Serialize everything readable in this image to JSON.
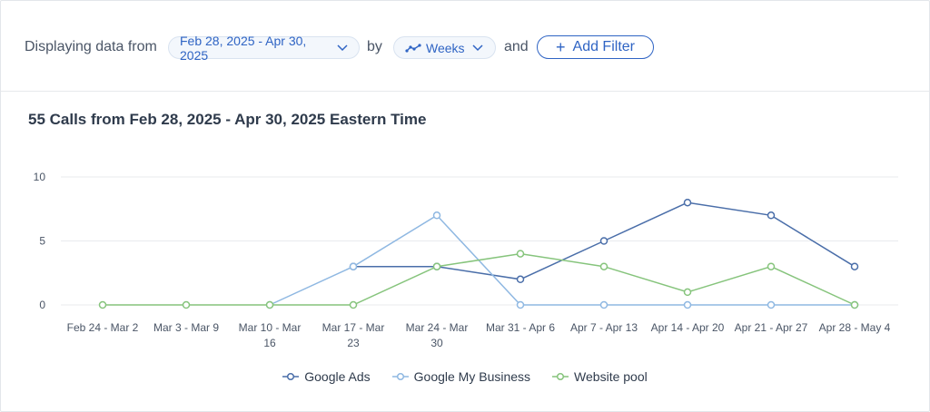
{
  "filters": {
    "prefix": "Displaying data from",
    "date_range": "Feb 28, 2025 - Apr 30, 2025",
    "by": "by",
    "interval": "Weeks",
    "and": "and",
    "add_filter": "Add Filter"
  },
  "colors": {
    "accent": "#2f64c4",
    "google_ads": "#4a6ea9",
    "google_my_business": "#8fb8e2",
    "website_pool": "#86c47c"
  },
  "icons": {
    "date_dropdown": "chevron-down-icon",
    "interval": "line-chart-icon",
    "add_filter": "plus-icon"
  },
  "chart_data": {
    "type": "line",
    "title": "55 Calls from Feb 28, 2025 - Apr 30, 2025 Eastern Time",
    "categories": [
      [
        "Feb 24 - Mar 2"
      ],
      [
        "Mar 3 - Mar 9"
      ],
      [
        "Mar 10 - Mar",
        "16"
      ],
      [
        "Mar 17 - Mar",
        "23"
      ],
      [
        "Mar 24 - Mar",
        "30"
      ],
      [
        "Mar 31 - Apr 6"
      ],
      [
        "Apr 7 - Apr 13"
      ],
      [
        "Apr 14 - Apr 20"
      ],
      [
        "Apr 21 - Apr 27"
      ],
      [
        "Apr 28 - May 4"
      ]
    ],
    "ylim": [
      0,
      10
    ],
    "yticks": [
      "0",
      "5",
      "10"
    ],
    "grid": true,
    "legend_position": "bottom",
    "series": [
      {
        "name": "Google Ads",
        "color": "#4a6ea9",
        "values": [
          null,
          null,
          null,
          3,
          3,
          2,
          5,
          8,
          7,
          3
        ]
      },
      {
        "name": "Google My Business",
        "color": "#8fb8e2",
        "values": [
          null,
          null,
          0,
          3,
          7,
          0,
          0,
          0,
          0,
          0
        ]
      },
      {
        "name": "Website pool",
        "color": "#86c47c",
        "values": [
          0,
          0,
          0,
          0,
          3,
          4,
          3,
          1,
          3,
          0
        ]
      }
    ]
  }
}
